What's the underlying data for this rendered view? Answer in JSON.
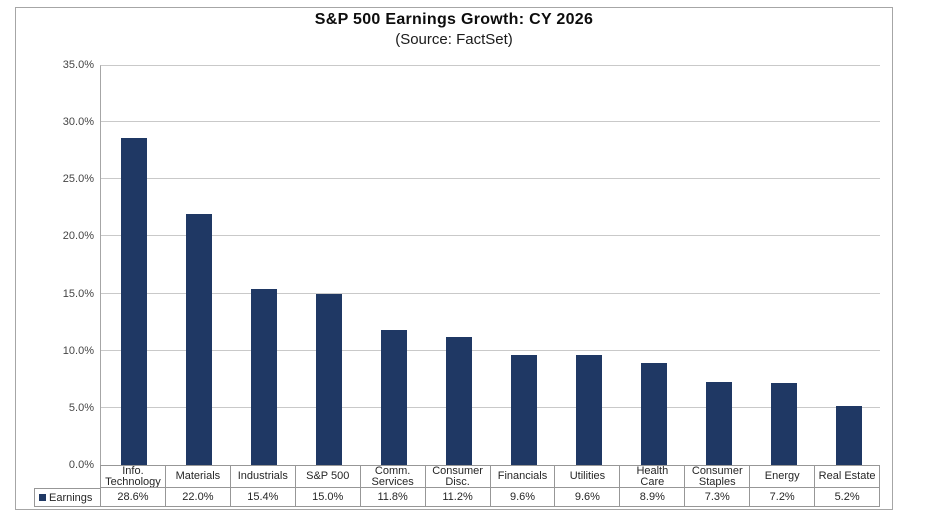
{
  "chart_data": {
    "type": "bar",
    "title": "S&P 500 Earnings Growth: CY 2026",
    "subtitle": "(Source: FactSet)",
    "series_name": "Earnings",
    "categories": [
      "Info. Technology",
      "Materials",
      "Industrials",
      "S&P 500",
      "Comm. Services",
      "Consumer Disc.",
      "Financials",
      "Utilities",
      "Health Care",
      "Consumer Staples",
      "Energy",
      "Real Estate"
    ],
    "category_display_lines": [
      [
        "Info.",
        "Technology"
      ],
      [
        "Materials"
      ],
      [
        "Industrials"
      ],
      [
        "S&P 500"
      ],
      [
        "Comm.",
        "Services"
      ],
      [
        "Consumer",
        "Disc."
      ],
      [
        "Financials"
      ],
      [
        "Utilities"
      ],
      [
        "Health",
        "Care"
      ],
      [
        "Consumer",
        "Staples"
      ],
      [
        "Energy"
      ],
      [
        "Real Estate"
      ]
    ],
    "values": [
      28.6,
      22.0,
      15.4,
      15.0,
      11.8,
      11.2,
      9.6,
      9.6,
      8.9,
      7.3,
      7.2,
      5.2
    ],
    "value_labels": [
      "28.6%",
      "22.0%",
      "15.4%",
      "15.0%",
      "11.8%",
      "11.2%",
      "9.6%",
      "9.6%",
      "8.9%",
      "7.3%",
      "7.2%",
      "5.2%"
    ],
    "xlabel": "",
    "ylabel": "",
    "ylim": [
      0,
      35
    ],
    "yticks": [
      0,
      5,
      10,
      15,
      20,
      25,
      30,
      35
    ],
    "ytick_labels": [
      "0.0%",
      "5.0%",
      "10.0%",
      "15.0%",
      "20.0%",
      "25.0%",
      "30.0%",
      "35.0%"
    ],
    "grid": true,
    "legend_position": "bottom-left",
    "colors": {
      "bar": "#1f3864",
      "gridline": "#c9c9c9",
      "axis_line": "#a6a6a6",
      "table_border": "#979797",
      "frame_border": "#a6a6a6"
    }
  },
  "legend": {
    "label": "Earnings"
  }
}
